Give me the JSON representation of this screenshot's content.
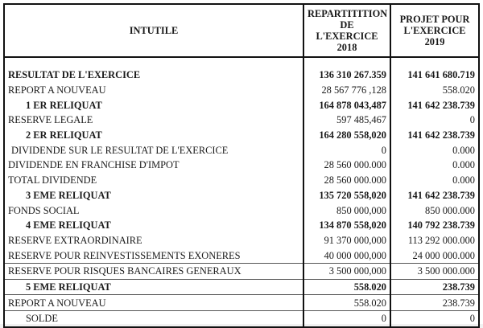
{
  "headers": {
    "label": "INTUTILE",
    "col2018": [
      "REPARTITITION",
      "DE",
      "L'EXERCICE",
      "2018"
    ],
    "col2019": [
      "PROJET POUR",
      "L'EXERCICE",
      "2019"
    ]
  },
  "rows": [
    {
      "label": "RESULTAT DE L'EXERCICE",
      "v2018": "136 310 267.359",
      "v2019": "141 641 680.719"
    },
    {
      "label": "REPORT A NOUVEAU",
      "v2018": "28 567 776 ,128",
      "v2019": "558.020"
    },
    {
      "label": "1 ER RELIQUAT",
      "v2018": "164 878 043,487",
      "v2019": "141 642 238.739"
    },
    {
      "label": "RESERVE LEGALE",
      "v2018": "597 485,467",
      "v2019": "0"
    },
    {
      "label": "2 ER RELIQUAT",
      "v2018": "164 280 558,020",
      "v2019": "141 642 238.739"
    },
    {
      "label": "DIVIDENDE SUR LE RESULTAT DE L'EXERCICE",
      "v2018": "0",
      "v2019": "0.000"
    },
    {
      "label": "DIVIDENDE EN FRANCHISE D'IMPOT",
      "v2018": "28 560 000.000",
      "v2019": "0.000"
    },
    {
      "label": "TOTAL DIVIDENDE",
      "v2018": "28 560 000.000",
      "v2019": "0.000"
    },
    {
      "label": "3 EME RELIQUAT",
      "v2018": "135 720 558,020",
      "v2019": "141 642 238.739"
    },
    {
      "label": "FONDS SOCIAL",
      "v2018": "850 000,000",
      "v2019": "850 000.000"
    },
    {
      "label": "4 EME RELIQUAT",
      "v2018": "134 870 558,020",
      "v2019": "140 792 238.739"
    },
    {
      "label": "RESERVE EXTRAORDINAIRE",
      "v2018": "91 370 000,000",
      "v2019": "113 292 000.000"
    },
    {
      "label": "RESERVE POUR REINVESTISSEMENTS EXONERES",
      "v2018": "40 000 000,000",
      "v2019": "24 000 000.000"
    },
    {
      "label": "RESERVE POUR RISQUES BANCAIRES GENERAUX",
      "v2018": "3 500 000,000",
      "v2019": "3 500 000.000"
    },
    {
      "label": "5 EME RELIQUAT",
      "v2018": "558.020",
      "v2019": "238.739"
    },
    {
      "label": "REPORT A NOUVEAU",
      "v2018": "558.020",
      "v2019": "238.739"
    },
    {
      "label": "SOLDE",
      "v2018": "0",
      "v2019": "0"
    }
  ]
}
